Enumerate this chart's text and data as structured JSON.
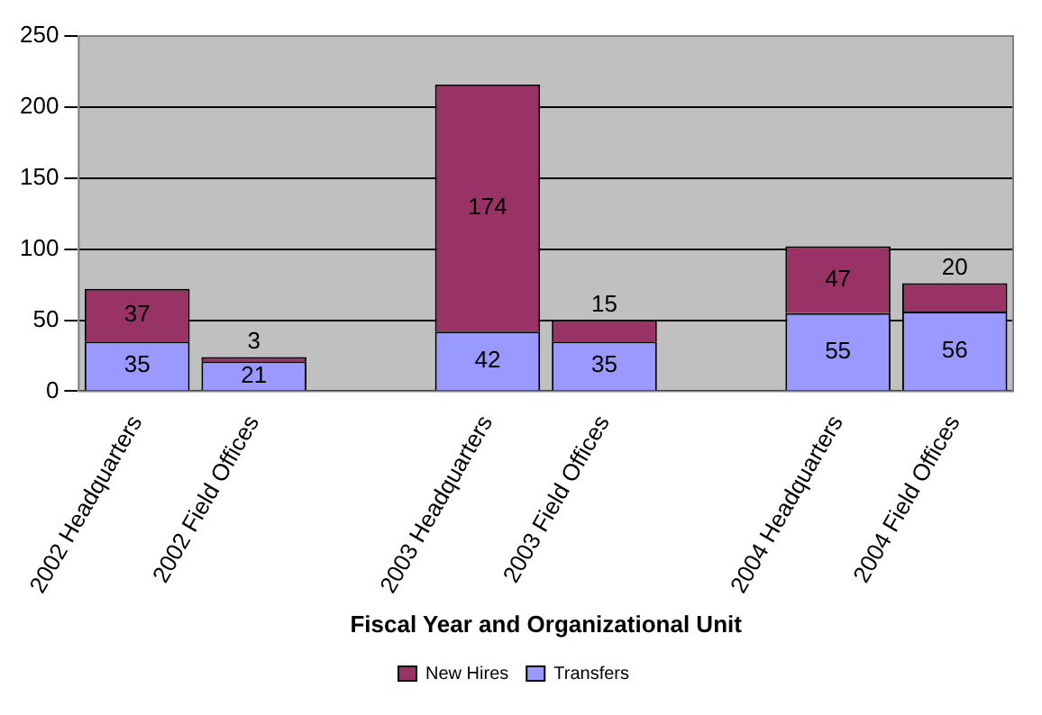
{
  "chart_data": {
    "type": "bar",
    "stacked": true,
    "xlabel": "Fiscal Year and Organizational Unit",
    "categories": [
      "2002 Headquarters",
      "2002 Field Offices",
      null,
      "2003 Headquarters",
      "2003 Field Offices",
      null,
      "2004 Headquarters",
      "2004 Field Offices"
    ],
    "series": [
      {
        "name": "Transfers",
        "color": "#9999ff",
        "values": [
          35,
          21,
          null,
          42,
          35,
          null,
          55,
          56
        ]
      },
      {
        "name": "New Hires",
        "color": "#993366",
        "values": [
          37,
          3,
          null,
          174,
          15,
          null,
          47,
          20
        ]
      }
    ],
    "ylim": [
      0,
      250
    ],
    "yticks": [
      0,
      50,
      100,
      150,
      200,
      250
    ],
    "grid": "y",
    "legend": "bottom",
    "data_labels": true
  }
}
